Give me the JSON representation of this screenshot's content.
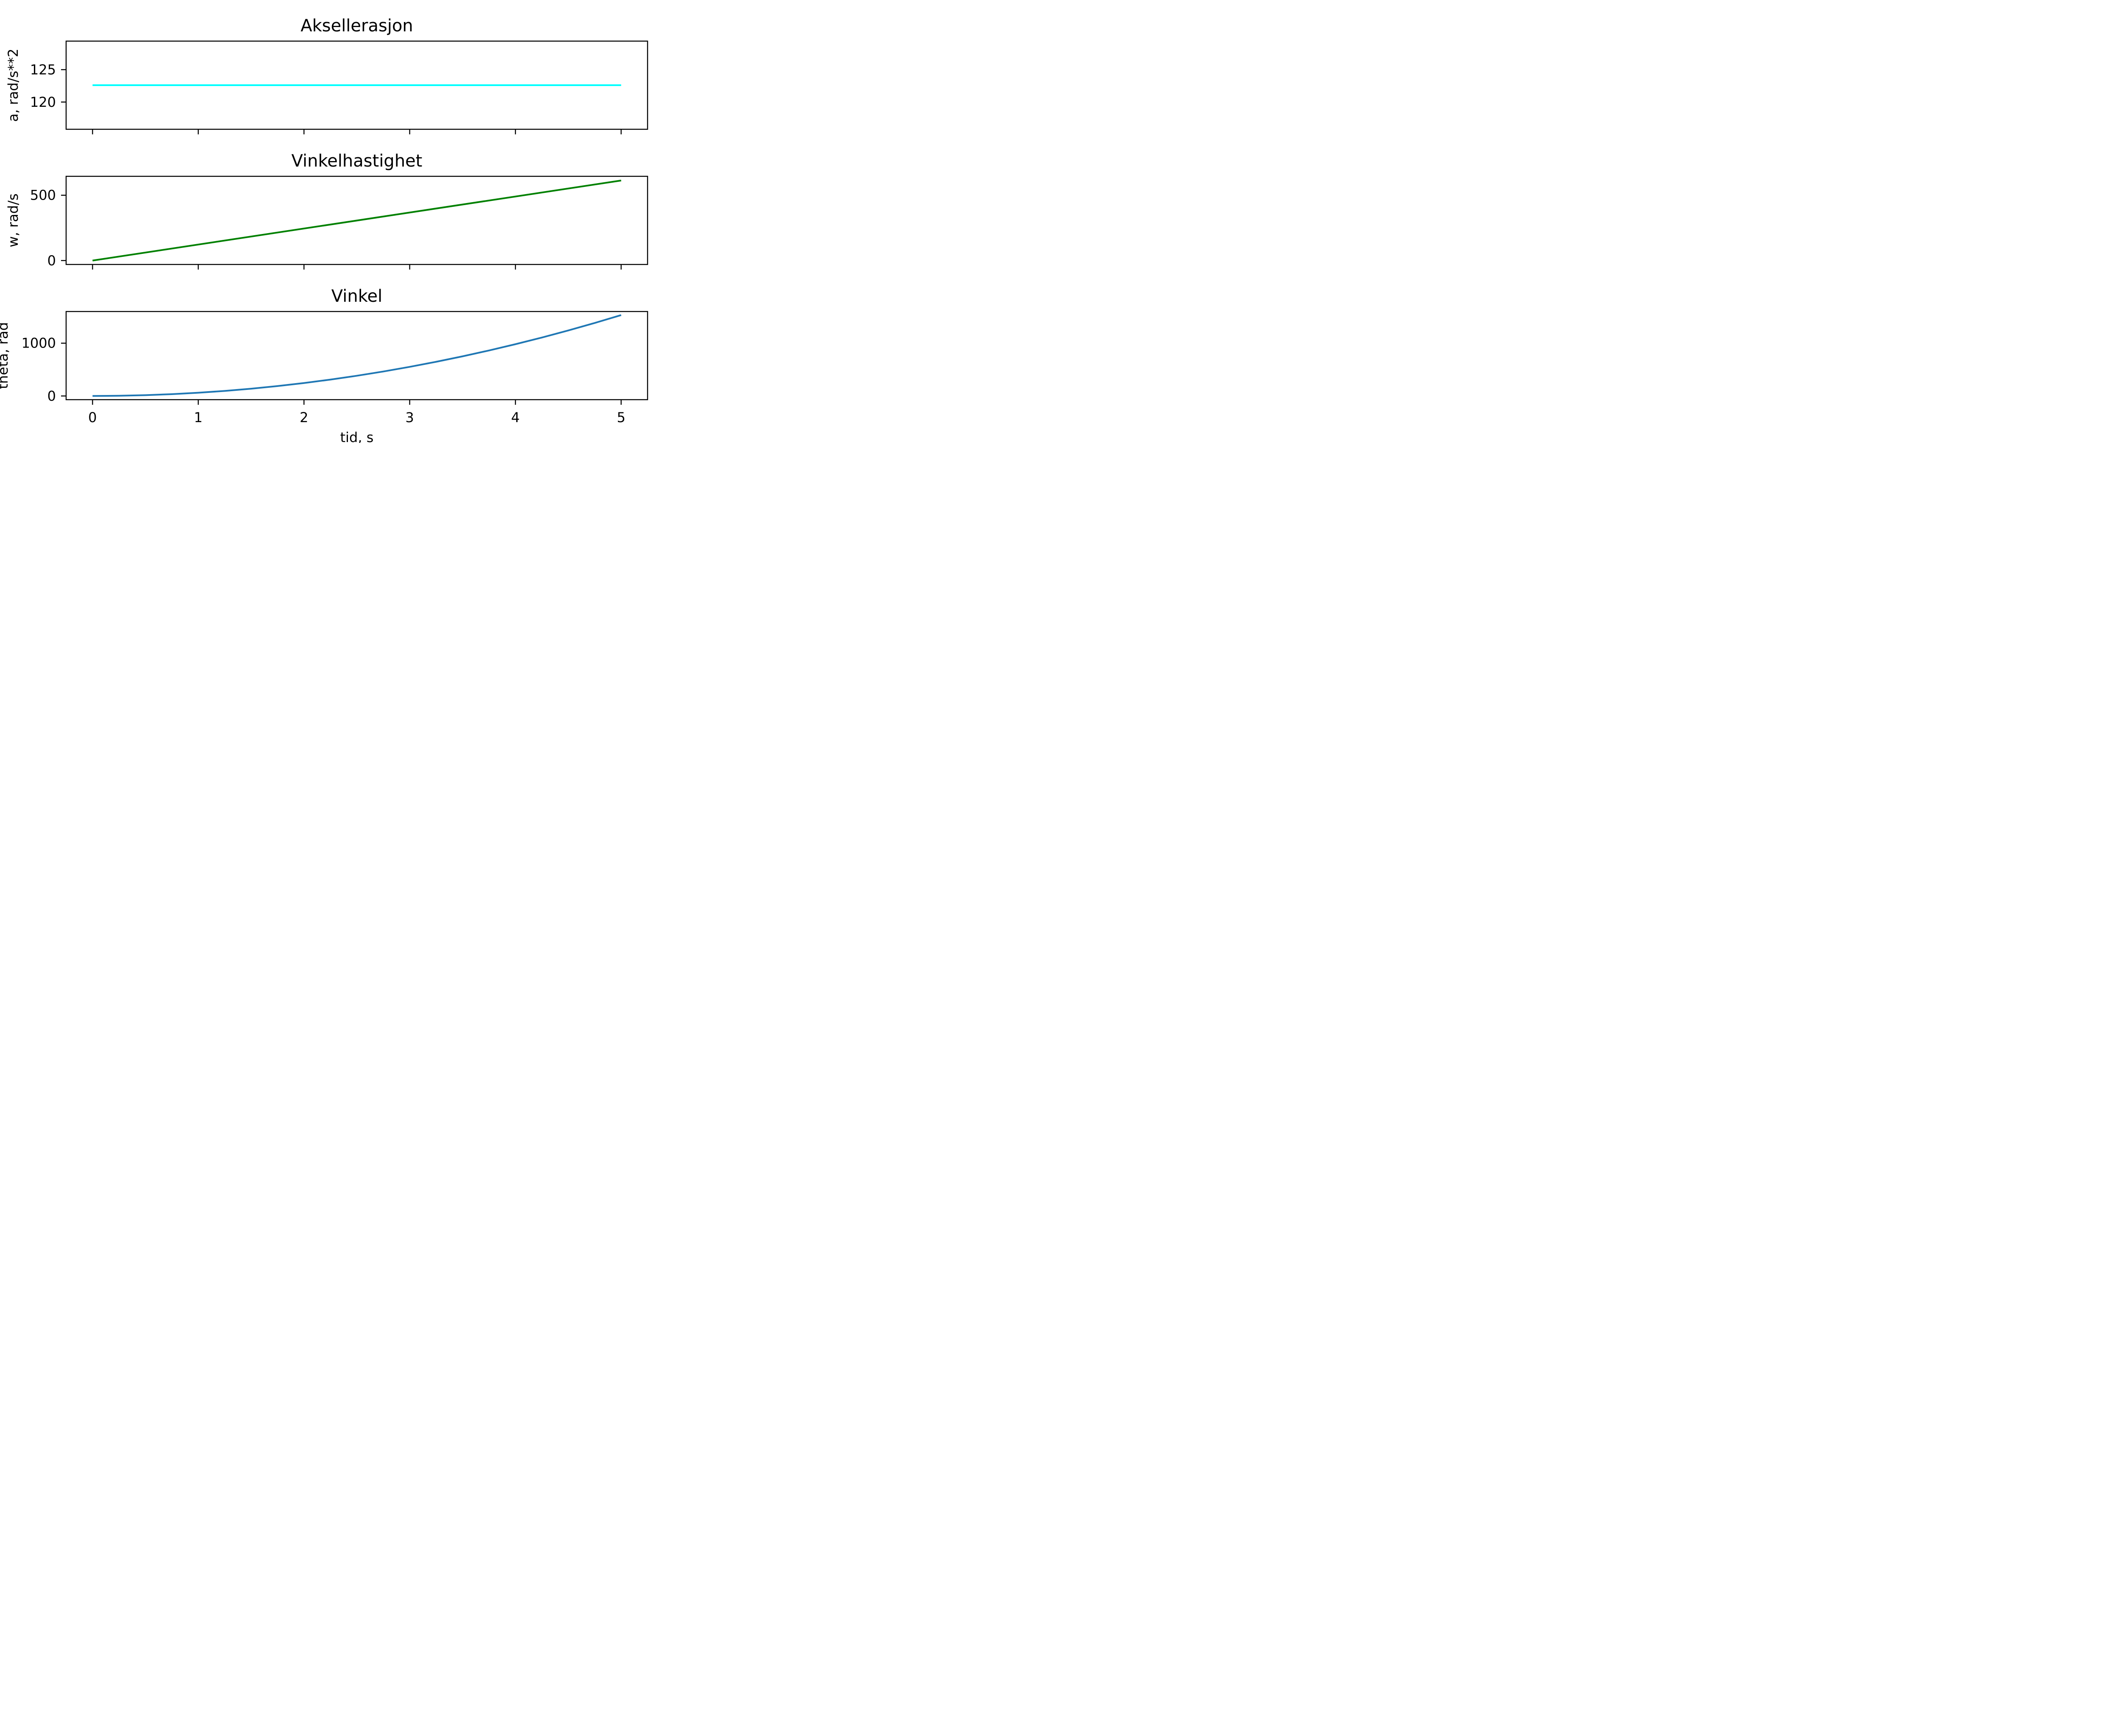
{
  "chart_data": [
    {
      "type": "line",
      "title": "Aksellerasjon",
      "ylabel": "a, rad/s**2",
      "xlabel": "",
      "xlim": [
        -0.25,
        5.25
      ],
      "ylim": [
        115.8,
        129.4
      ],
      "xticks": [
        0,
        1,
        2,
        3,
        4,
        5
      ],
      "xtick_labels_visible": false,
      "yticks": [
        120,
        125
      ],
      "ytick_labels": [
        "120",
        "125"
      ],
      "series": [
        {
          "color": "#00ffff",
          "x": [
            0,
            5
          ],
          "y": [
            122.6,
            122.6
          ]
        }
      ]
    },
    {
      "type": "line",
      "title": "Vinkelhastighet",
      "ylabel": "w, rad/s",
      "xlabel": "",
      "xlim": [
        -0.25,
        5.25
      ],
      "ylim": [
        -30,
        645
      ],
      "xticks": [
        0,
        1,
        2,
        3,
        4,
        5
      ],
      "xtick_labels_visible": false,
      "yticks": [
        0,
        500
      ],
      "ytick_labels": [
        "0",
        "500"
      ],
      "series": [
        {
          "color": "#008000",
          "x": [
            0,
            5
          ],
          "y": [
            0,
            613
          ]
        }
      ]
    },
    {
      "type": "line",
      "title": "Vinkel",
      "ylabel": "theta, rad",
      "xlabel": "tid, s",
      "xlim": [
        -0.25,
        5.25
      ],
      "ylim": [
        -70,
        1600
      ],
      "xticks": [
        0,
        1,
        2,
        3,
        4,
        5
      ],
      "xtick_labels_visible": true,
      "xtick_labels": [
        "0",
        "1",
        "2",
        "3",
        "4",
        "5"
      ],
      "yticks": [
        0,
        1000
      ],
      "ytick_labels": [
        "0",
        "1000"
      ],
      "series": [
        {
          "color": "#1f77b4",
          "x": [
            0,
            0.25,
            0.5,
            0.75,
            1,
            1.25,
            1.5,
            1.75,
            2,
            2.25,
            2.5,
            2.75,
            3,
            3.25,
            3.5,
            3.75,
            4,
            4.25,
            4.5,
            4.75,
            5
          ],
          "y": [
            0,
            3.8,
            15.3,
            34.5,
            61.3,
            95.8,
            137.9,
            187.7,
            245.2,
            310.3,
            383.1,
            463.6,
            551.7,
            647.5,
            751,
            862.1,
            980.8,
            1107.2,
            1241.3,
            1383.1,
            1532.5
          ]
        }
      ]
    }
  ]
}
